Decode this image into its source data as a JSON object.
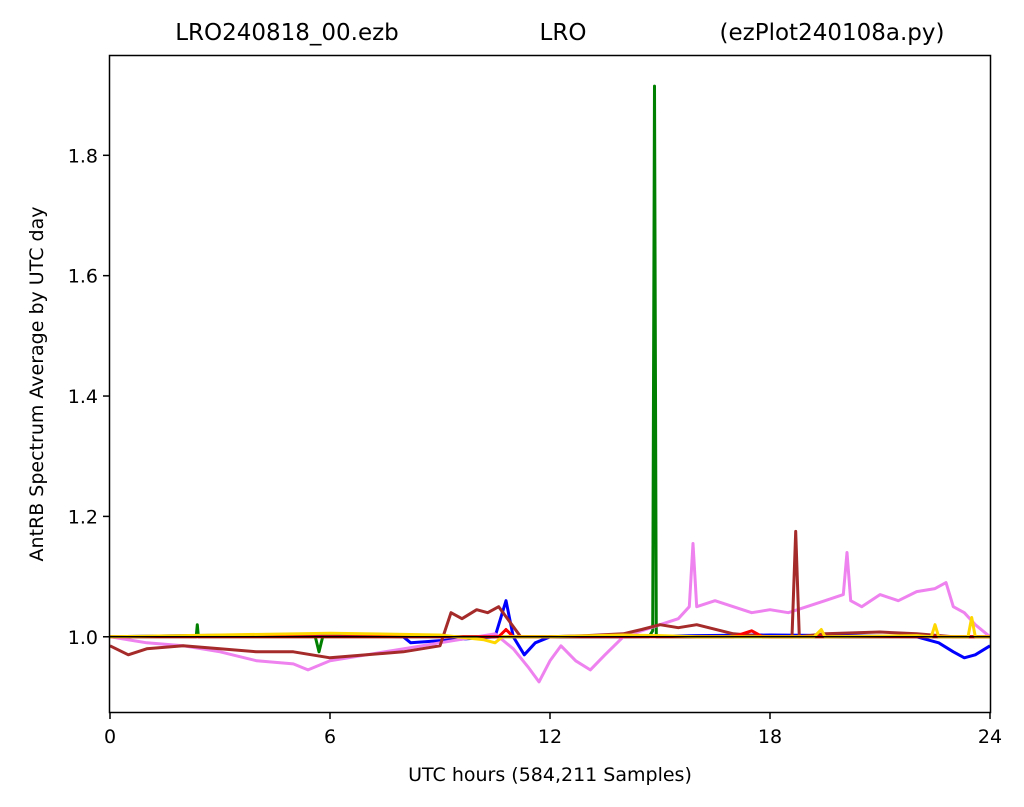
{
  "header": {
    "left": "LRO240818_00.ezb",
    "center": "LRO",
    "right": "(ezPlot240108a.py)"
  },
  "chart_data": {
    "type": "line",
    "title": "",
    "xlabel": "UTC hours  (584,211 Samples)",
    "ylabel": "AntRB Spectrum Average by UTC day",
    "xlim": [
      0,
      24
    ],
    "ylim": [
      0.875,
      1.965
    ],
    "xticks": [
      0,
      6,
      12,
      18,
      24
    ],
    "xtick_labels": [
      "0",
      "6",
      "12",
      "18",
      "24"
    ],
    "yticks": [
      1.0,
      1.2,
      1.4,
      1.6,
      1.8
    ],
    "ytick_labels": [
      "1.0",
      "1.2",
      "1.4",
      "1.6",
      "1.8"
    ],
    "grid": false,
    "legend": "none",
    "series": [
      {
        "color": "#0000ff",
        "x": [
          0,
          2,
          4,
          6,
          8,
          8.2,
          10.5,
          10.8,
          11.0,
          11.3,
          11.6,
          12,
          14,
          16,
          18,
          20,
          22,
          22.6,
          23.0,
          23.3,
          23.6,
          24
        ],
        "y": [
          1.0,
          1.002,
          1.003,
          1.003,
          1.0,
          0.99,
          1.0,
          1.06,
          1.0,
          0.97,
          0.99,
          1.0,
          1.0,
          1.002,
          1.003,
          1.002,
          1.0,
          0.99,
          0.975,
          0.965,
          0.97,
          0.985
        ]
      },
      {
        "color": "#008000",
        "x": [
          0,
          2.35,
          2.38,
          2.41,
          5.6,
          5.7,
          5.8,
          9,
          12,
          14.7,
          14.8,
          14.85,
          14.9,
          17,
          20,
          24
        ],
        "y": [
          1.0,
          1.0,
          1.02,
          1.0,
          1.0,
          0.975,
          1.0,
          1.0,
          1.0,
          1.0,
          1.01,
          1.915,
          1.0,
          1.0,
          1.0,
          1.0
        ]
      },
      {
        "color": "#ee82ee",
        "x": [
          0,
          1,
          2,
          3,
          4,
          5,
          5.4,
          6,
          7,
          8,
          9,
          10,
          10.5,
          11,
          11.4,
          11.7,
          12,
          12.3,
          12.7,
          13.1,
          13.5,
          14,
          14.5,
          15,
          15.5,
          15.8,
          15.9,
          16.0,
          16.5,
          17,
          17.5,
          18,
          18.5,
          19,
          19.5,
          20,
          20.1,
          20.2,
          20.5,
          21,
          21.5,
          22,
          22.5,
          22.8,
          23,
          23.3,
          23.6,
          24
        ],
        "y": [
          1.0,
          0.99,
          0.985,
          0.975,
          0.96,
          0.955,
          0.945,
          0.96,
          0.97,
          0.98,
          0.99,
          1.0,
          1.005,
          0.98,
          0.95,
          0.925,
          0.96,
          0.985,
          0.96,
          0.945,
          0.97,
          1.0,
          1.01,
          1.02,
          1.03,
          1.05,
          1.155,
          1.05,
          1.06,
          1.05,
          1.04,
          1.045,
          1.04,
          1.05,
          1.06,
          1.07,
          1.14,
          1.06,
          1.05,
          1.07,
          1.06,
          1.075,
          1.08,
          1.09,
          1.05,
          1.04,
          1.02,
          1.0
        ]
      },
      {
        "color": "#a52a2a",
        "x": [
          0,
          0.5,
          1,
          2,
          3,
          4,
          5,
          6,
          7,
          8,
          9,
          9.3,
          9.6,
          10,
          10.3,
          10.6,
          10.9,
          11.2,
          12,
          13,
          14,
          14.5,
          15,
          15.5,
          16,
          17,
          18,
          18.6,
          18.7,
          18.8,
          19.5,
          21,
          22,
          23,
          24
        ],
        "y": [
          0.985,
          0.97,
          0.98,
          0.985,
          0.98,
          0.975,
          0.975,
          0.965,
          0.97,
          0.975,
          0.985,
          1.04,
          1.03,
          1.045,
          1.04,
          1.05,
          1.025,
          1.0,
          1.0,
          1.002,
          1.005,
          1.012,
          1.02,
          1.015,
          1.02,
          1.005,
          1.0,
          1.0,
          1.175,
          1.0,
          1.005,
          1.008,
          1.005,
          1.0,
          1.0
        ]
      },
      {
        "color": "#ff0000",
        "x": [
          0,
          4,
          8,
          10.6,
          10.8,
          11,
          14,
          17,
          17.5,
          17.8,
          20,
          24
        ],
        "y": [
          1.0,
          1.0,
          1.0,
          1.0,
          1.012,
          1.0,
          1.0,
          1.0,
          1.01,
          1.0,
          1.0,
          1.0
        ]
      },
      {
        "color": "#ffd700",
        "x": [
          0,
          3,
          6,
          9,
          10.2,
          10.5,
          10.7,
          12,
          14,
          15,
          16,
          19.2,
          19.4,
          19.5,
          22,
          22.4,
          22.5,
          22.6,
          23.4,
          23.5,
          23.6,
          24
        ],
        "y": [
          1.0,
          1.003,
          1.006,
          1.003,
          0.995,
          0.99,
          1.0,
          1.0,
          1.003,
          1.002,
          1.0,
          1.0,
          1.012,
          1.0,
          1.002,
          1.0,
          1.02,
          1.0,
          1.0,
          1.032,
          1.0,
          1.0
        ]
      },
      {
        "color": "#000000",
        "x": [
          0,
          24
        ],
        "y": [
          1.0,
          1.0
        ]
      }
    ]
  }
}
